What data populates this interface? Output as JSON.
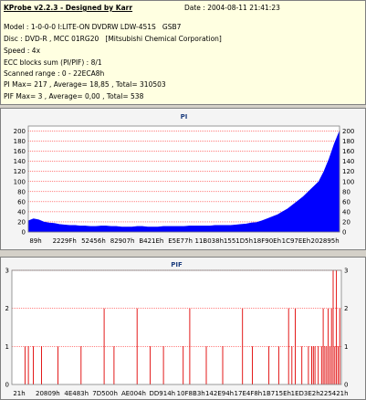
{
  "header": {
    "app_title": "KProbe v2.2.3 - Designed by Karr",
    "date": "Date : 2004-08-11 21:41:23",
    "model": "Model : 1-0-0-0 I:LITE-ON DVDRW LDW-451S   GSB7",
    "disc": "Disc : DVD-R , MCC 01RG20   [Mitsubishi Chemical Corporation]",
    "speed": "Speed : 4x",
    "ecc": "ECC blocks sum (PI/PIF) : 8/1",
    "scanned": "Scanned range : 0 - 22ECA8h",
    "pi_stats": "PI Max= 217 , Average= 18,85 , Total= 310503",
    "pif_stats": "PIF Max= 3 , Average= 0,00 , Total= 538"
  },
  "colors": {
    "series": "#0000ff",
    "pif_series": "#e00000",
    "grid": "#ff0000",
    "background": "#ffffff"
  },
  "chart_data": [
    {
      "type": "area",
      "title": "PI",
      "ylim": [
        0,
        210
      ],
      "y_ticks": [
        0,
        20,
        40,
        60,
        80,
        100,
        120,
        140,
        160,
        180,
        200
      ],
      "x_ticks": [
        "89h",
        "2229Fh",
        "52456h",
        "82907h",
        "B421Eh",
        "E5E77h",
        "11B038h",
        "1551D5h",
        "18F90Eh",
        "1C97EEh",
        "202895h"
      ],
      "grid": true,
      "series": [
        {
          "values": [
            22,
            26,
            24,
            20,
            18,
            17,
            15,
            14,
            13,
            13,
            12,
            12,
            11,
            11,
            12,
            12,
            11,
            11,
            10,
            10,
            10,
            11,
            11,
            10,
            10,
            10,
            11,
            11,
            11,
            11,
            11,
            12,
            12,
            12,
            12,
            12,
            13,
            13,
            13,
            13,
            14,
            15,
            16,
            18,
            19,
            22,
            26,
            30,
            34,
            40,
            46,
            54,
            62,
            70,
            80,
            90,
            100,
            120,
            145,
            175,
            200
          ]
        }
      ]
    },
    {
      "type": "bar",
      "title": "PIF",
      "ylim": [
        0,
        3
      ],
      "y_ticks": [
        0,
        1,
        2,
        3
      ],
      "x_ticks": [
        "21h",
        "20809h",
        "4E483h",
        "7D500h",
        "AE004h",
        "DD914h",
        "10F8B3h",
        "142E94h",
        "17E4F8h",
        "1B715Eh",
        "1ED3E2h",
        "225421h"
      ],
      "grid": true,
      "points": [
        [
          0.04,
          1
        ],
        [
          0.05,
          1
        ],
        [
          0.065,
          1
        ],
        [
          0.09,
          1
        ],
        [
          0.14,
          1
        ],
        [
          0.21,
          1
        ],
        [
          0.28,
          2
        ],
        [
          0.31,
          1
        ],
        [
          0.38,
          2
        ],
        [
          0.42,
          1
        ],
        [
          0.46,
          1
        ],
        [
          0.52,
          1
        ],
        [
          0.54,
          2
        ],
        [
          0.59,
          1
        ],
        [
          0.64,
          1
        ],
        [
          0.7,
          2
        ],
        [
          0.73,
          1
        ],
        [
          0.78,
          1
        ],
        [
          0.81,
          1
        ],
        [
          0.84,
          2
        ],
        [
          0.85,
          1
        ],
        [
          0.86,
          2
        ],
        [
          0.88,
          1
        ],
        [
          0.9,
          1
        ],
        [
          0.91,
          1
        ],
        [
          0.915,
          1
        ],
        [
          0.92,
          1
        ],
        [
          0.93,
          1
        ],
        [
          0.94,
          1
        ],
        [
          0.945,
          2
        ],
        [
          0.95,
          1
        ],
        [
          0.955,
          1
        ],
        [
          0.96,
          2
        ],
        [
          0.965,
          1
        ],
        [
          0.97,
          2
        ],
        [
          0.975,
          3
        ],
        [
          0.98,
          1
        ],
        [
          0.985,
          3
        ],
        [
          0.99,
          1
        ],
        [
          0.995,
          2
        ]
      ]
    }
  ]
}
